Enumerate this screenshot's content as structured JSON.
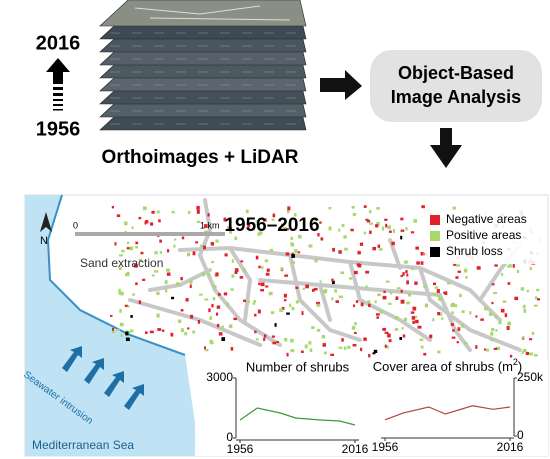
{
  "stack": {
    "top_year": "2016",
    "bottom_year": "1956",
    "caption": "Orthoimages + LiDAR"
  },
  "process": {
    "label_line1": "Object-Based",
    "label_line2": "Image Analysis"
  },
  "map": {
    "title": "1956–2016",
    "scale_start": "0",
    "scale_end": "1 km",
    "north": "N",
    "sand_label": "Sand extraction",
    "seawater_label": "Seawater intrusion",
    "sea_label": "Mediterranean Sea",
    "legend": [
      {
        "name": "Negative areas",
        "color": "#e0202a"
      },
      {
        "name": "Positive areas",
        "color": "#a6d96a"
      },
      {
        "name": "Shrub loss",
        "color": "#000000"
      }
    ]
  },
  "chart_data": [
    {
      "type": "line",
      "title": "Number of shrubs",
      "color": "#3a9a3a",
      "x": [
        1956,
        1965,
        1977,
        1985,
        1998,
        2008,
        2016
      ],
      "values": [
        900,
        1500,
        1250,
        1000,
        900,
        850,
        650
      ],
      "xlim": [
        1956,
        2016
      ],
      "xticks": [
        1956,
        2016
      ],
      "ylim": [
        0,
        3000
      ],
      "yticks": [
        0,
        3000
      ]
    },
    {
      "type": "line",
      "title_parts": [
        "Cover area of shrubs (m",
        "2",
        ")"
      ],
      "color": "#b0473a",
      "x": [
        1956,
        1965,
        1977,
        1985,
        1998,
        2008,
        2016
      ],
      "values": [
        70000,
        100000,
        125000,
        95000,
        130000,
        115000,
        125000
      ],
      "xlim": [
        1956,
        2016
      ],
      "xticks": [
        1956,
        2016
      ],
      "ylim": [
        0,
        250000
      ],
      "yticks": [
        0,
        {
          "value": 250000,
          "label": "250k"
        }
      ]
    }
  ]
}
